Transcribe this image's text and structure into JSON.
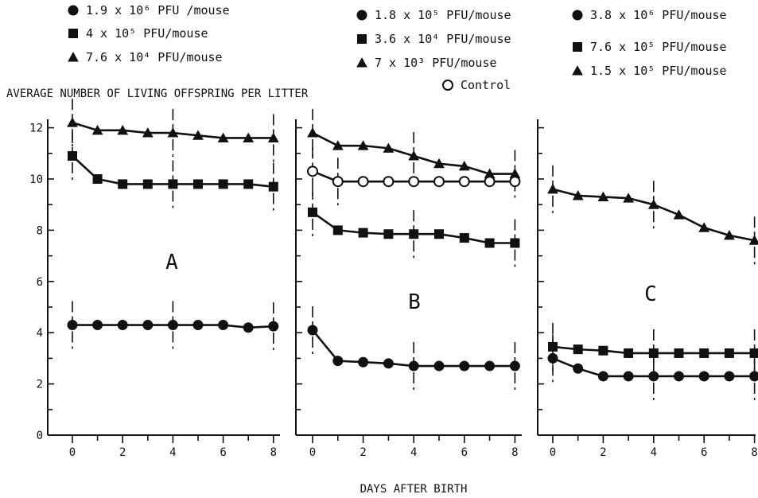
{
  "chart_data": {
    "type": "line",
    "ylabel": "AVERAGE NUMBER OF LIVING OFFSPRING PER LITTER",
    "xlabel": "DAYS AFTER BIRTH",
    "ylim": [
      0,
      12.5
    ],
    "yticks": [
      "0",
      "2",
      "4",
      "6",
      "8",
      "10",
      "12"
    ],
    "ytick_values": [
      0,
      2,
      4,
      6,
      8,
      10,
      12
    ],
    "xticks": [
      "0",
      "2",
      "4",
      "6",
      "8"
    ],
    "xtick_values": [
      0,
      2,
      4,
      6,
      8
    ],
    "panels": [
      {
        "label": "A",
        "legend": [
          {
            "marker": "circle",
            "text": "1.9 x 10⁶ PFU /mouse"
          },
          {
            "marker": "square",
            "text": "4   x 10⁵ PFU/mouse"
          },
          {
            "marker": "triangle",
            "text": "7.6 x 10⁴ PFU/mouse"
          }
        ],
        "series": [
          {
            "marker": "triangle",
            "x": [
              0,
              1,
              2,
              3,
              4,
              5,
              6,
              7,
              8
            ],
            "y": [
              12.2,
              11.9,
              11.9,
              11.8,
              11.8,
              11.7,
              11.6,
              11.6,
              11.6
            ],
            "errbars": [
              0,
              4,
              8
            ]
          },
          {
            "marker": "square",
            "x": [
              0,
              1,
              2,
              3,
              4,
              5,
              6,
              7,
              8
            ],
            "y": [
              10.9,
              10.0,
              9.8,
              9.8,
              9.8,
              9.8,
              9.8,
              9.8,
              9.7
            ],
            "errbars": [
              0,
              4,
              8
            ]
          },
          {
            "marker": "circle",
            "x": [
              0,
              1,
              2,
              3,
              4,
              5,
              6,
              7,
              8
            ],
            "y": [
              4.3,
              4.3,
              4.3,
              4.3,
              4.3,
              4.3,
              4.3,
              4.2,
              4.25
            ],
            "errbars": [
              0,
              4,
              8
            ]
          }
        ]
      },
      {
        "label": "B",
        "legend": [
          {
            "marker": "circle",
            "text": "1.8 x 10⁵ PFU/mouse"
          },
          {
            "marker": "square",
            "text": "3.6 x 10⁴ PFU/mouse"
          },
          {
            "marker": "triangle",
            "text": "7   x 10³ PFU/mouse"
          },
          {
            "marker": "open-circle",
            "text": "Control"
          }
        ],
        "series": [
          {
            "marker": "triangle",
            "x": [
              0,
              1,
              2,
              3,
              4,
              5,
              6,
              7,
              8
            ],
            "y": [
              11.8,
              11.3,
              11.3,
              11.2,
              10.9,
              10.6,
              10.5,
              10.2,
              10.2
            ],
            "errbars": [
              0,
              4,
              8
            ]
          },
          {
            "marker": "open-circle",
            "x": [
              0,
              1,
              2,
              3,
              4,
              5,
              6,
              7,
              8
            ],
            "y": [
              10.3,
              9.9,
              9.9,
              9.9,
              9.9,
              9.9,
              9.9,
              9.9,
              9.9
            ],
            "errbars": [
              0,
              1
            ]
          },
          {
            "marker": "square",
            "x": [
              0,
              1,
              2,
              3,
              4,
              5,
              6,
              7,
              8
            ],
            "y": [
              8.7,
              8.0,
              7.9,
              7.85,
              7.85,
              7.85,
              7.7,
              7.5,
              7.5
            ],
            "errbars": [
              0,
              4,
              8
            ]
          },
          {
            "marker": "circle",
            "x": [
              0,
              1,
              2,
              3,
              4,
              5,
              6,
              7,
              8
            ],
            "y": [
              4.1,
              2.9,
              2.85,
              2.8,
              2.7,
              2.7,
              2.7,
              2.7,
              2.7
            ],
            "errbars": [
              0,
              4,
              8
            ]
          }
        ]
      },
      {
        "label": "C",
        "legend": [
          {
            "marker": "circle",
            "text": "3.8 x 10⁶ PFU/mouse"
          },
          {
            "marker": "square",
            "text": "7.6 x 10⁵ PFU/mouse"
          },
          {
            "marker": "triangle",
            "text": "1.5 x 10⁵ PFU/mouse"
          }
        ],
        "series": [
          {
            "marker": "triangle",
            "x": [
              0,
              1,
              2,
              3,
              4,
              5,
              6,
              7,
              8
            ],
            "y": [
              9.6,
              9.35,
              9.3,
              9.25,
              9.0,
              8.6,
              8.1,
              7.8,
              7.6
            ],
            "errbars": [
              0,
              4,
              8
            ]
          },
          {
            "marker": "square",
            "x": [
              0,
              1,
              2,
              3,
              4,
              5,
              6,
              7,
              8
            ],
            "y": [
              3.45,
              3.35,
              3.3,
              3.2,
              3.2,
              3.2,
              3.2,
              3.2,
              3.2
            ],
            "errbars": [
              0,
              4,
              8
            ]
          },
          {
            "marker": "circle",
            "x": [
              0,
              1,
              2,
              3,
              4,
              5,
              6,
              7,
              8
            ],
            "y": [
              3.0,
              2.6,
              2.3,
              2.3,
              2.3,
              2.3,
              2.3,
              2.3,
              2.3
            ],
            "errbars": [
              0,
              4,
              8
            ]
          }
        ]
      }
    ]
  }
}
